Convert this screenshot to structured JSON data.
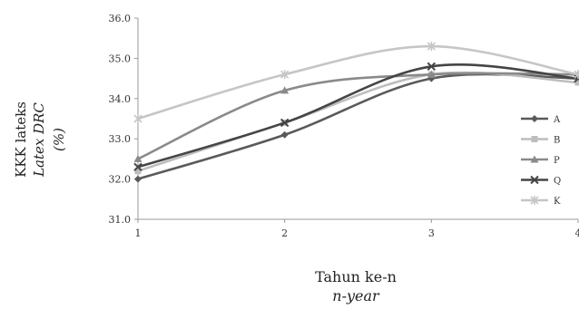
{
  "chart_data": {
    "type": "line",
    "ylabel_lines": [
      "KKK lateks",
      "Latex DRC",
      "(%)"
    ],
    "xlabel_lines": [
      "Tahun ke-n",
      "n-year"
    ],
    "x": [
      1,
      2,
      3,
      4
    ],
    "x_tick_labels": [
      "1",
      "2",
      "3",
      "4"
    ],
    "ylim": [
      31.0,
      36.0
    ],
    "y_tick_labels": [
      "31.0",
      "32.0",
      "33.0",
      "34.0",
      "35.0",
      "36.0"
    ],
    "grid": false,
    "legend_position": "right",
    "series": [
      {
        "name": "A",
        "values": [
          32.0,
          33.1,
          34.5,
          34.5
        ],
        "color": "#5a5a5a",
        "marker": "diamond"
      },
      {
        "name": "B",
        "values": [
          32.2,
          33.4,
          34.6,
          34.4
        ],
        "color": "#bdbdbd",
        "marker": "square"
      },
      {
        "name": "P",
        "values": [
          32.5,
          34.2,
          34.6,
          34.6
        ],
        "color": "#8a8a8a",
        "marker": "triangle"
      },
      {
        "name": "Q",
        "values": [
          32.3,
          33.4,
          34.8,
          34.5
        ],
        "color": "#454545",
        "marker": "x"
      },
      {
        "name": "K",
        "values": [
          33.5,
          34.6,
          35.3,
          34.6
        ],
        "color": "#c6c6c6",
        "marker": "star"
      }
    ]
  }
}
